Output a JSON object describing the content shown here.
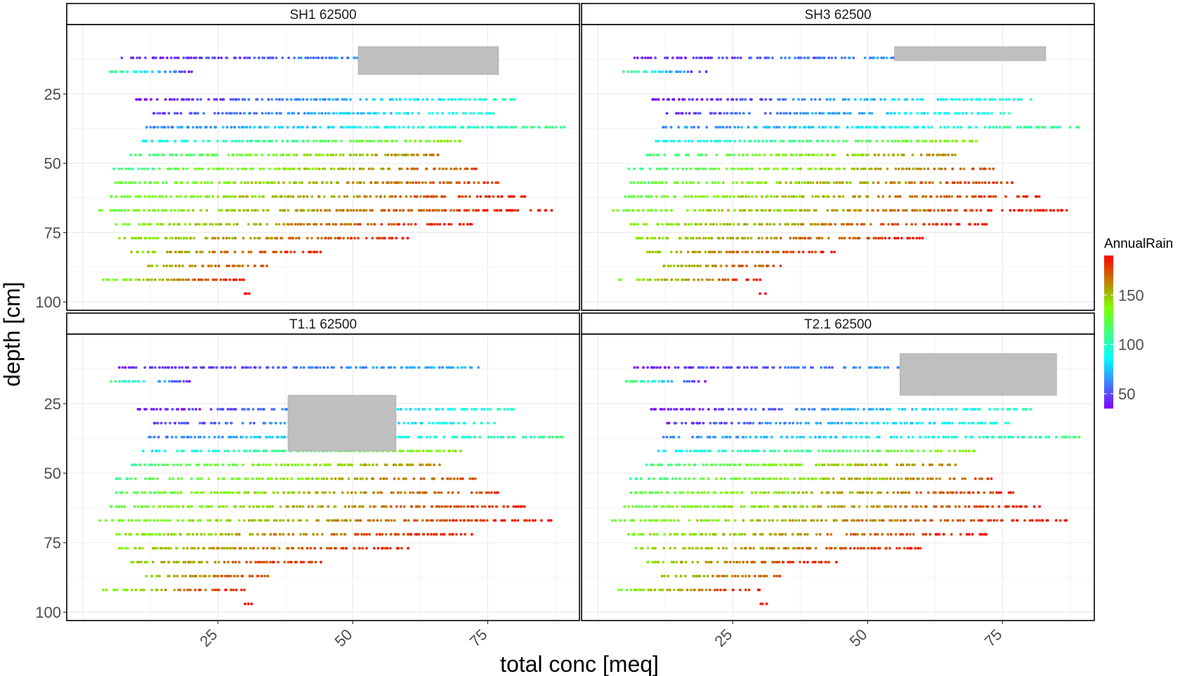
{
  "chart_data": {
    "type": "scatter",
    "facets": [
      "SH1   62500",
      "SH3   62500",
      "T1.1   62500",
      "T2.1   62500"
    ],
    "xlabel": "total conc [meq]",
    "ylabel": "depth [cm]",
    "x_ticks": [
      25,
      50,
      75
    ],
    "y_ticks": [
      25,
      50,
      75,
      100
    ],
    "xlim": [
      -3,
      92
    ],
    "ylim": [
      103,
      0
    ],
    "y_reversed": true,
    "grid": true,
    "legend": {
      "title": "AnnualRain",
      "ticks": [
        50,
        100,
        150
      ],
      "range": [
        35,
        190
      ],
      "placement": "right"
    },
    "colormap": [
      "#7f00ff",
      "#00ffff",
      "#80ff00",
      "#ff0000"
    ],
    "depth_rows": [
      {
        "depth": 12,
        "x_from": 7,
        "x_to": 73,
        "rain_from": 40,
        "rain_to": 75
      },
      {
        "depth": 17,
        "x_from": 5,
        "x_to": 20,
        "rain_from": 115,
        "rain_to": 40
      },
      {
        "depth": 27,
        "x_from": 10,
        "x_to": 80,
        "rain_from": 35,
        "rain_to": 100
      },
      {
        "depth": 32,
        "x_from": 13,
        "x_to": 76,
        "rain_from": 45,
        "rain_to": 95
      },
      {
        "depth": 37,
        "x_from": 12,
        "x_to": 89,
        "rain_from": 60,
        "rain_to": 110
      },
      {
        "depth": 42,
        "x_from": 11,
        "x_to": 70,
        "rain_from": 85,
        "rain_to": 140
      },
      {
        "depth": 47,
        "x_from": 9,
        "x_to": 66,
        "rain_from": 110,
        "rain_to": 165
      },
      {
        "depth": 52,
        "x_from": 6,
        "x_to": 73,
        "rain_from": 110,
        "rain_to": 175
      },
      {
        "depth": 57,
        "x_from": 6,
        "x_to": 77,
        "rain_from": 120,
        "rain_to": 180
      },
      {
        "depth": 62,
        "x_from": 5,
        "x_to": 82,
        "rain_from": 125,
        "rain_to": 185
      },
      {
        "depth": 67,
        "x_from": 3,
        "x_to": 87,
        "rain_from": 130,
        "rain_to": 188
      },
      {
        "depth": 72,
        "x_from": 6,
        "x_to": 72,
        "rain_from": 135,
        "rain_to": 188
      },
      {
        "depth": 77,
        "x_from": 7,
        "x_to": 60,
        "rain_from": 140,
        "rain_to": 185
      },
      {
        "depth": 82,
        "x_from": 9,
        "x_to": 44,
        "rain_from": 145,
        "rain_to": 185
      },
      {
        "depth": 87,
        "x_from": 12,
        "x_to": 34,
        "rain_from": 150,
        "rain_to": 175
      },
      {
        "depth": 92,
        "x_from": 4,
        "x_to": 30,
        "rain_from": 130,
        "rain_to": 188
      },
      {
        "depth": 97,
        "x_from": 30,
        "x_to": 31,
        "rain_from": 188,
        "rain_to": 188
      }
    ],
    "highlight_rects": [
      {
        "facet": "SH1   62500",
        "x": [
          51,
          77
        ],
        "y": [
          8,
          18
        ]
      },
      {
        "facet": "SH3   62500",
        "x": [
          55,
          83
        ],
        "y": [
          8,
          13
        ]
      },
      {
        "facet": "T1.1   62500",
        "x": [
          38,
          58
        ],
        "y": [
          22,
          42
        ]
      },
      {
        "facet": "T2.1   62500",
        "x": [
          56,
          85
        ],
        "y": [
          7,
          22
        ]
      }
    ],
    "highlight_color": "#bfbfbf"
  }
}
